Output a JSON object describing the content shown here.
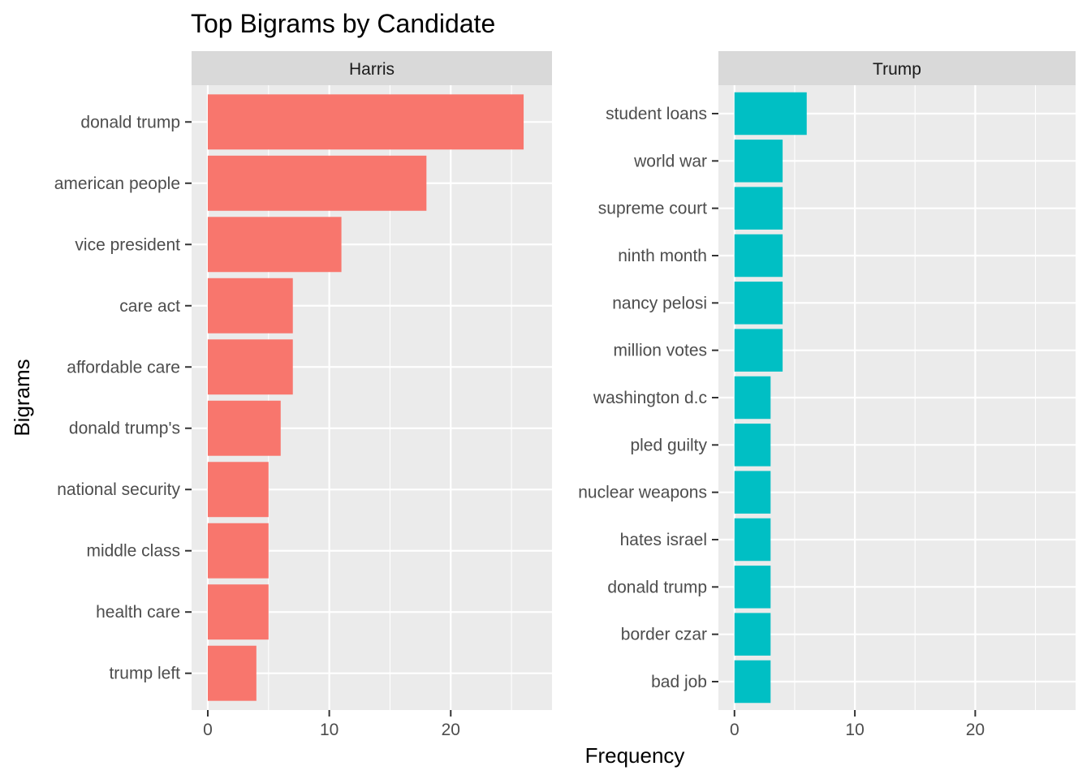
{
  "chart_data": {
    "type": "bar",
    "orientation": "horizontal",
    "title": "Top Bigrams by Candidate",
    "xlabel": "Frequency",
    "ylabel": "Bigrams",
    "xlim": [
      0,
      27
    ],
    "x_ticks": [
      0,
      10,
      20
    ],
    "x_ticks_minor": [
      5,
      15,
      25
    ],
    "grid": true,
    "legend": "none",
    "facets": [
      {
        "name": "Harris",
        "color": "#F8766D",
        "categories": [
          "donald trump",
          "american people",
          "vice president",
          "care act",
          "affordable care",
          "donald trump's",
          "national security",
          "middle class",
          "health care",
          "trump left"
        ],
        "values": [
          26,
          18,
          11,
          7,
          7,
          6,
          5,
          5,
          5,
          4
        ]
      },
      {
        "name": "Trump",
        "color": "#00BFC4",
        "categories": [
          "student loans",
          "world war",
          "supreme court",
          "ninth month",
          "nancy pelosi",
          "million votes",
          "washington d.c",
          "pled guilty",
          "nuclear weapons",
          "hates israel",
          "donald trump",
          "border czar",
          "bad job"
        ],
        "values": [
          6,
          4,
          4,
          4,
          4,
          4,
          3,
          3,
          3,
          3,
          3,
          3,
          3
        ]
      }
    ]
  }
}
